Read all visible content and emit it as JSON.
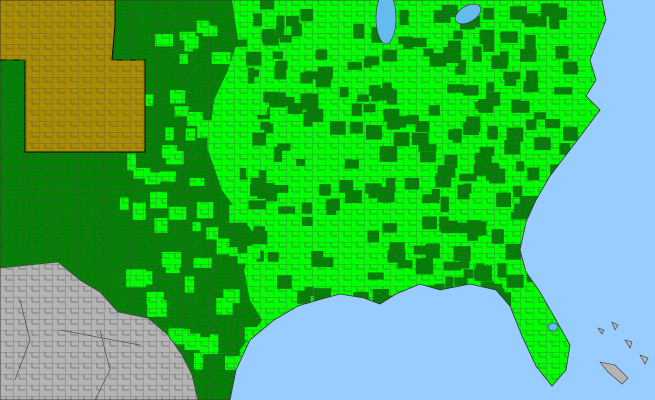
{
  "map": {
    "colors": {
      "ocean": "#99ccff",
      "lakes": "#66bbee",
      "present_bright": "#00ff00",
      "present_dark": "#008000",
      "state_other": "#aa8c00",
      "outside": "#b4b4b4",
      "county_borders": "#555555",
      "state_borders": "#000000"
    }
  }
}
